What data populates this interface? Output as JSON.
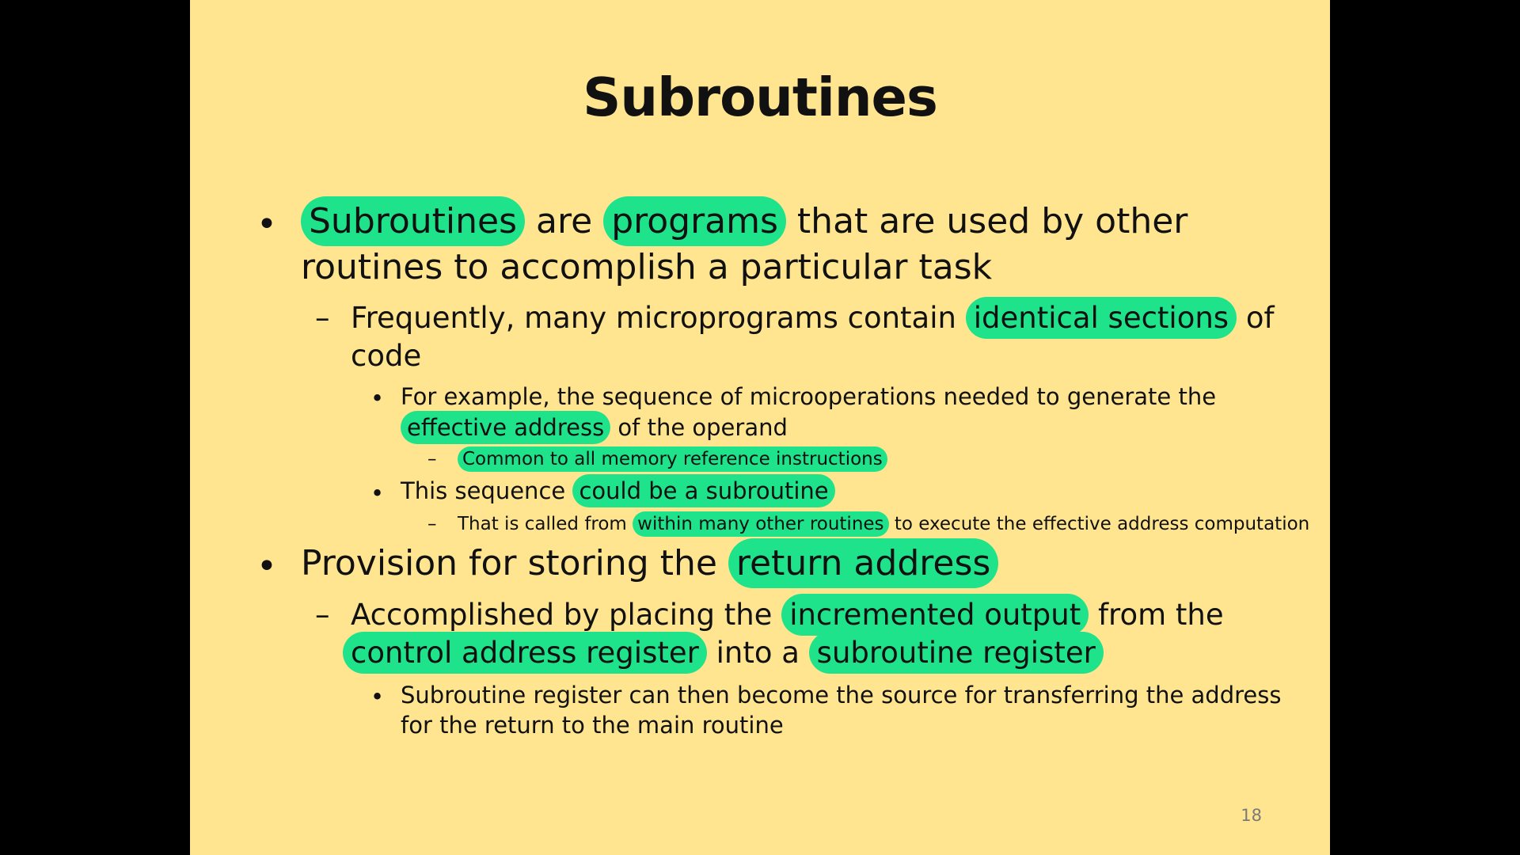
{
  "slide": {
    "title": "Subroutines",
    "page_number": "18",
    "colors": {
      "background": "#FFE58F",
      "highlight": "#1EE38A",
      "letterbox": "#000000"
    },
    "bullets": {
      "b1": {
        "marker": "•",
        "line1": {
          "hl1": "Subroutines",
          "t1": " are ",
          "hl2": "programs",
          "t2": " that are used by other"
        },
        "line2": "routines to accomplish a particular task"
      },
      "b1a": {
        "marker": "–",
        "line1": {
          "t1": "Frequently, many microprograms contain ",
          "hl1": "identical sections",
          "t2": " of"
        },
        "line2": "code"
      },
      "b1a1": {
        "marker": "•",
        "line1": "For example, the sequence of microoperations needed to generate the",
        "line2": {
          "hl1": "effective address",
          "t1": " of the operand"
        }
      },
      "b1a1a": {
        "marker": "–",
        "hl1": "Common to all memory reference instructions"
      },
      "b1a2": {
        "marker": "•",
        "t1": "This sequence ",
        "hl1": "could be a subroutine"
      },
      "b1a2a": {
        "marker": "–",
        "t1": "That is called from ",
        "hl1": "within many other routines",
        "t2": " to execute the effective address computation"
      },
      "b2": {
        "marker": "•",
        "t1": "Provision for storing the ",
        "hl1": "return address"
      },
      "b2a": {
        "marker": "–",
        "line1": {
          "t1": "Accomplished by placing the ",
          "hl1": "incremented output",
          "t2": " from the"
        },
        "line2": {
          "hl1": "control address register",
          "t1": " into a ",
          "hl2": "subroutine register"
        }
      },
      "b2a1": {
        "marker": "•",
        "line1": "Subroutine register can then become the source for transferring the address",
        "line2": "for the return to the main routine"
      }
    }
  }
}
